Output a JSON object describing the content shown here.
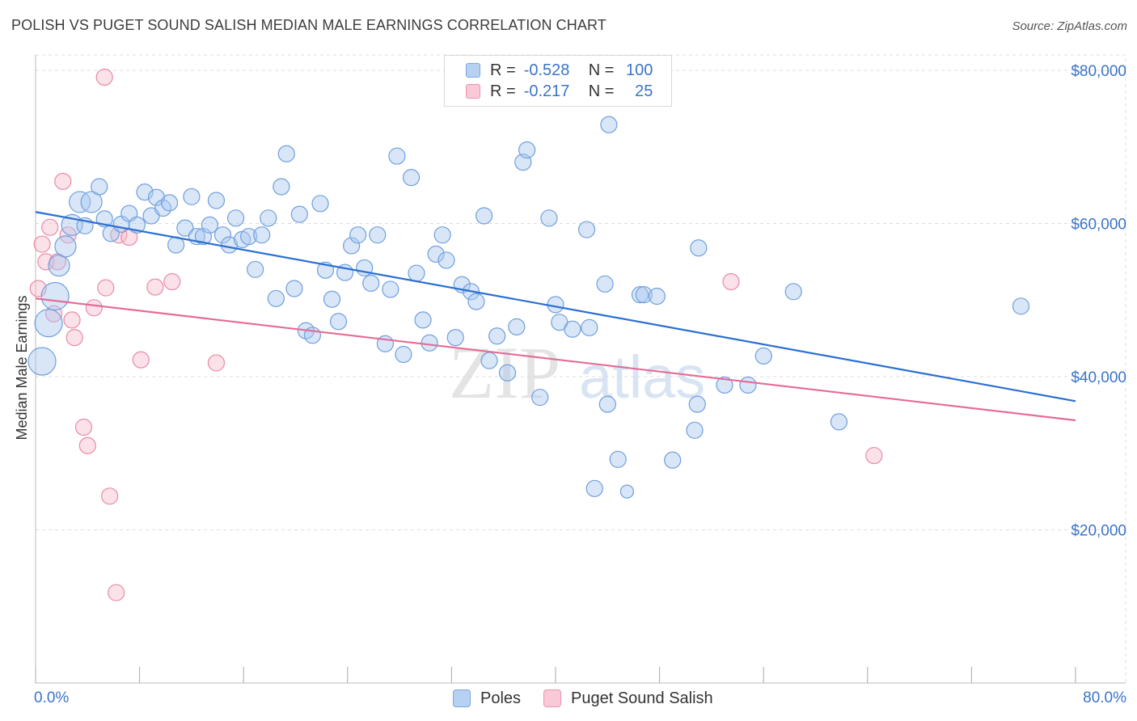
{
  "title": "POLISH VS PUGET SOUND SALISH MEDIAN MALE EARNINGS CORRELATION CHART",
  "source": "Source: ZipAtlas.com",
  "legend": {
    "rows": [
      {
        "r_label": "R =",
        "r_value": "-0.528",
        "n_label": "N =",
        "n_value": "100"
      },
      {
        "r_label": "R =",
        "r_value": "-0.217",
        "n_label": "N =",
        "n_value": "25"
      }
    ]
  },
  "bottom_legend": [
    "Poles",
    "Puget Sound Salish"
  ],
  "watermark": {
    "left": "ZIP",
    "right": "atlas"
  },
  "colors": {
    "blue_fill": "#a9c8f0",
    "blue_stroke": "#6f9fdc",
    "blue_line": "#2b6fd1",
    "pink_fill": "#f6bccd",
    "pink_stroke": "#e98aa7",
    "pink_line": "#e56b95",
    "axis_label": "#3a74c8",
    "grid": "#dddddd"
  },
  "chart_data": {
    "type": "scatter",
    "title": "POLISH VS PUGET SOUND SALISH MEDIAN MALE EARNINGS CORRELATION CHART",
    "xlabel": "",
    "ylabel": "Median Male Earnings",
    "xlim": [
      0,
      80
    ],
    "ylim": [
      0,
      82000
    ],
    "x_tick_labels": [
      "0.0%",
      "80.0%"
    ],
    "y_ticks": [
      20000,
      40000,
      60000,
      80000
    ],
    "y_tick_labels": [
      "$20,000",
      "$40,000",
      "$60,000",
      "$80,000"
    ],
    "grid": true,
    "legend_position": "top-center",
    "series": [
      {
        "name": "Poles",
        "color": "#a9c8f0",
        "trend": {
          "x": [
            0,
            80
          ],
          "y": [
            61500,
            36800
          ]
        },
        "points": [
          {
            "x": 0.5,
            "y": 42000,
            "s": 3
          },
          {
            "x": 1.0,
            "y": 47000,
            "s": 3
          },
          {
            "x": 1.5,
            "y": 50500,
            "s": 3
          },
          {
            "x": 1.8,
            "y": 54500,
            "s": 2
          },
          {
            "x": 2.3,
            "y": 57000,
            "s": 2
          },
          {
            "x": 2.8,
            "y": 59800,
            "s": 2
          },
          {
            "x": 3.4,
            "y": 62800,
            "s": 2
          },
          {
            "x": 3.8,
            "y": 59700,
            "s": 1
          },
          {
            "x": 4.3,
            "y": 62800,
            "s": 2
          },
          {
            "x": 4.9,
            "y": 64800,
            "s": 1
          },
          {
            "x": 5.3,
            "y": 60600,
            "s": 1
          },
          {
            "x": 5.8,
            "y": 58700,
            "s": 1
          },
          {
            "x": 6.6,
            "y": 59900,
            "s": 1
          },
          {
            "x": 7.2,
            "y": 61300,
            "s": 1
          },
          {
            "x": 7.8,
            "y": 59800,
            "s": 1
          },
          {
            "x": 8.4,
            "y": 64100,
            "s": 1
          },
          {
            "x": 8.9,
            "y": 61000,
            "s": 1
          },
          {
            "x": 9.3,
            "y": 63400,
            "s": 1
          },
          {
            "x": 9.8,
            "y": 62000,
            "s": 1
          },
          {
            "x": 10.3,
            "y": 62700,
            "s": 1
          },
          {
            "x": 10.8,
            "y": 57200,
            "s": 1
          },
          {
            "x": 11.5,
            "y": 59400,
            "s": 1
          },
          {
            "x": 12.0,
            "y": 63500,
            "s": 1
          },
          {
            "x": 12.4,
            "y": 58300,
            "s": 1
          },
          {
            "x": 12.9,
            "y": 58300,
            "s": 1
          },
          {
            "x": 13.4,
            "y": 59800,
            "s": 1
          },
          {
            "x": 13.9,
            "y": 63000,
            "s": 1
          },
          {
            "x": 14.4,
            "y": 58500,
            "s": 1
          },
          {
            "x": 14.9,
            "y": 57200,
            "s": 1
          },
          {
            "x": 15.4,
            "y": 60700,
            "s": 1
          },
          {
            "x": 15.9,
            "y": 57900,
            "s": 1
          },
          {
            "x": 16.4,
            "y": 58300,
            "s": 1
          },
          {
            "x": 16.9,
            "y": 54000,
            "s": 1
          },
          {
            "x": 17.4,
            "y": 58500,
            "s": 1
          },
          {
            "x": 17.9,
            "y": 60700,
            "s": 1
          },
          {
            "x": 18.5,
            "y": 50200,
            "s": 1
          },
          {
            "x": 18.9,
            "y": 64800,
            "s": 1
          },
          {
            "x": 19.3,
            "y": 69100,
            "s": 1
          },
          {
            "x": 19.9,
            "y": 51500,
            "s": 1
          },
          {
            "x": 20.3,
            "y": 61200,
            "s": 1
          },
          {
            "x": 20.8,
            "y": 46000,
            "s": 1
          },
          {
            "x": 21.3,
            "y": 45400,
            "s": 1
          },
          {
            "x": 21.9,
            "y": 62600,
            "s": 1
          },
          {
            "x": 22.3,
            "y": 53900,
            "s": 1
          },
          {
            "x": 22.8,
            "y": 50100,
            "s": 1
          },
          {
            "x": 23.3,
            "y": 47200,
            "s": 1
          },
          {
            "x": 23.8,
            "y": 53600,
            "s": 1
          },
          {
            "x": 24.3,
            "y": 57100,
            "s": 1
          },
          {
            "x": 24.8,
            "y": 58500,
            "s": 1
          },
          {
            "x": 25.3,
            "y": 54200,
            "s": 1
          },
          {
            "x": 25.8,
            "y": 52200,
            "s": 1
          },
          {
            "x": 26.3,
            "y": 58500,
            "s": 1
          },
          {
            "x": 26.9,
            "y": 44300,
            "s": 1
          },
          {
            "x": 27.3,
            "y": 51400,
            "s": 1
          },
          {
            "x": 27.8,
            "y": 68800,
            "s": 1
          },
          {
            "x": 28.3,
            "y": 42900,
            "s": 1
          },
          {
            "x": 28.9,
            "y": 66000,
            "s": 1
          },
          {
            "x": 29.3,
            "y": 53500,
            "s": 1
          },
          {
            "x": 29.8,
            "y": 47400,
            "s": 1
          },
          {
            "x": 30.3,
            "y": 44400,
            "s": 1
          },
          {
            "x": 30.8,
            "y": 56000,
            "s": 1
          },
          {
            "x": 31.3,
            "y": 58500,
            "s": 1
          },
          {
            "x": 31.6,
            "y": 55200,
            "s": 1
          },
          {
            "x": 32.3,
            "y": 45100,
            "s": 1
          },
          {
            "x": 32.8,
            "y": 52000,
            "s": 1
          },
          {
            "x": 33.5,
            "y": 51100,
            "s": 1
          },
          {
            "x": 33.9,
            "y": 49800,
            "s": 1
          },
          {
            "x": 34.5,
            "y": 61000,
            "s": 1
          },
          {
            "x": 34.9,
            "y": 42100,
            "s": 1
          },
          {
            "x": 35.5,
            "y": 45300,
            "s": 1
          },
          {
            "x": 36.3,
            "y": 40500,
            "s": 1
          },
          {
            "x": 37.0,
            "y": 46500,
            "s": 1
          },
          {
            "x": 37.5,
            "y": 68000,
            "s": 1
          },
          {
            "x": 37.8,
            "y": 69600,
            "s": 1
          },
          {
            "x": 38.8,
            "y": 37300,
            "s": 1
          },
          {
            "x": 39.5,
            "y": 60700,
            "s": 1
          },
          {
            "x": 40.0,
            "y": 49400,
            "s": 1
          },
          {
            "x": 40.3,
            "y": 47100,
            "s": 1
          },
          {
            "x": 41.3,
            "y": 46200,
            "s": 1
          },
          {
            "x": 42.4,
            "y": 59200,
            "s": 1
          },
          {
            "x": 42.6,
            "y": 46400,
            "s": 1
          },
          {
            "x": 43.0,
            "y": 25400,
            "s": 1
          },
          {
            "x": 43.8,
            "y": 52100,
            "s": 1
          },
          {
            "x": 44.1,
            "y": 72900,
            "s": 1
          },
          {
            "x": 44.0,
            "y": 36400,
            "s": 1
          },
          {
            "x": 44.8,
            "y": 29200,
            "s": 1
          },
          {
            "x": 46.5,
            "y": 50700,
            "s": 1
          },
          {
            "x": 46.8,
            "y": 50700,
            "s": 1
          },
          {
            "x": 47.8,
            "y": 50500,
            "s": 1
          },
          {
            "x": 49.0,
            "y": 29100,
            "s": 1
          },
          {
            "x": 50.7,
            "y": 33000,
            "s": 1
          },
          {
            "x": 50.9,
            "y": 36400,
            "s": 1
          },
          {
            "x": 51.0,
            "y": 56800,
            "s": 1
          },
          {
            "x": 53.0,
            "y": 38900,
            "s": 1
          },
          {
            "x": 54.8,
            "y": 38900,
            "s": 1
          },
          {
            "x": 56.0,
            "y": 42700,
            "s": 1
          },
          {
            "x": 58.3,
            "y": 51100,
            "s": 1
          },
          {
            "x": 61.8,
            "y": 34100,
            "s": 1
          },
          {
            "x": 75.8,
            "y": 49200,
            "s": 1
          },
          {
            "x": 45.5,
            "y": 25000,
            "s": 0
          }
        ]
      },
      {
        "name": "Puget Sound Salish",
        "color": "#f6bccd",
        "trend": {
          "x": [
            0,
            80
          ],
          "y": [
            50200,
            34300
          ]
        },
        "points": [
          {
            "x": 0.2,
            "y": 51500,
            "s": 1
          },
          {
            "x": 0.5,
            "y": 57300,
            "s": 1
          },
          {
            "x": 0.8,
            "y": 55000,
            "s": 1
          },
          {
            "x": 1.1,
            "y": 59500,
            "s": 1
          },
          {
            "x": 1.4,
            "y": 48200,
            "s": 1
          },
          {
            "x": 1.7,
            "y": 55000,
            "s": 1
          },
          {
            "x": 2.1,
            "y": 65500,
            "s": 1
          },
          {
            "x": 2.5,
            "y": 58500,
            "s": 1
          },
          {
            "x": 2.8,
            "y": 47400,
            "s": 1
          },
          {
            "x": 3.0,
            "y": 45100,
            "s": 1
          },
          {
            "x": 3.7,
            "y": 33400,
            "s": 1
          },
          {
            "x": 4.0,
            "y": 31000,
            "s": 1
          },
          {
            "x": 4.5,
            "y": 49000,
            "s": 1
          },
          {
            "x": 5.3,
            "y": 79100,
            "s": 1
          },
          {
            "x": 5.4,
            "y": 51600,
            "s": 1
          },
          {
            "x": 5.7,
            "y": 24400,
            "s": 1
          },
          {
            "x": 6.2,
            "y": 11800,
            "s": 1
          },
          {
            "x": 6.4,
            "y": 58500,
            "s": 1
          },
          {
            "x": 7.2,
            "y": 58200,
            "s": 1
          },
          {
            "x": 8.1,
            "y": 42200,
            "s": 1
          },
          {
            "x": 9.2,
            "y": 51700,
            "s": 1
          },
          {
            "x": 10.5,
            "y": 52400,
            "s": 1
          },
          {
            "x": 13.9,
            "y": 41800,
            "s": 1
          },
          {
            "x": 53.5,
            "y": 52400,
            "s": 1
          },
          {
            "x": 64.5,
            "y": 29700,
            "s": 1
          }
        ]
      }
    ]
  }
}
